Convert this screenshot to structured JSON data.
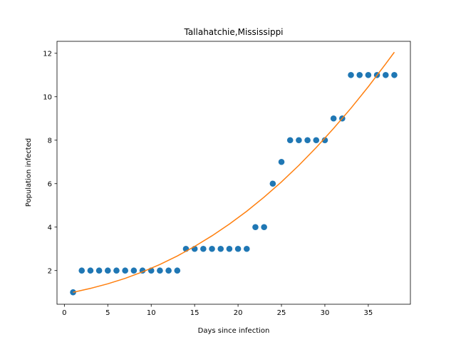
{
  "chart_data": {
    "type": "scatter",
    "title": "Tallahatchie,Mississippi",
    "xlabel": "Days since infection",
    "ylabel": "Population infected",
    "xlim": [
      -0.85,
      39.85
    ],
    "ylim": [
      0.45,
      12.55
    ],
    "xticks": [
      0,
      5,
      10,
      15,
      20,
      25,
      30,
      35
    ],
    "yticks": [
      2,
      4,
      6,
      8,
      10,
      12
    ],
    "grid": false,
    "series": [
      {
        "kind": "scatter",
        "color": "#1f77b4",
        "x": [
          1,
          2,
          3,
          4,
          5,
          6,
          7,
          8,
          9,
          10,
          11,
          12,
          13,
          14,
          15,
          16,
          17,
          18,
          19,
          20,
          21,
          22,
          23,
          24,
          25,
          26,
          27,
          28,
          29,
          30,
          31,
          32,
          33,
          34,
          35,
          36,
          37,
          38
        ],
        "y": [
          1,
          2,
          2,
          2,
          2,
          2,
          2,
          2,
          2,
          2,
          2,
          2,
          2,
          3,
          3,
          3,
          3,
          3,
          3,
          3,
          3,
          4,
          4,
          6,
          7,
          8,
          8,
          8,
          8,
          8,
          9,
          9,
          11,
          11,
          11,
          11,
          11,
          11
        ]
      },
      {
        "kind": "line",
        "color": "#ff7f0e",
        "x": [
          1,
          3,
          5,
          7,
          9,
          11,
          13,
          15,
          17,
          19,
          21,
          23,
          25,
          27,
          29,
          31,
          33,
          35,
          37,
          38
        ],
        "y": [
          1.0,
          1.18,
          1.39,
          1.64,
          1.94,
          2.28,
          2.67,
          3.11,
          3.6,
          4.14,
          4.73,
          5.38,
          6.08,
          6.84,
          7.66,
          8.54,
          9.47,
          10.46,
          11.51,
          12.05
        ]
      }
    ]
  }
}
